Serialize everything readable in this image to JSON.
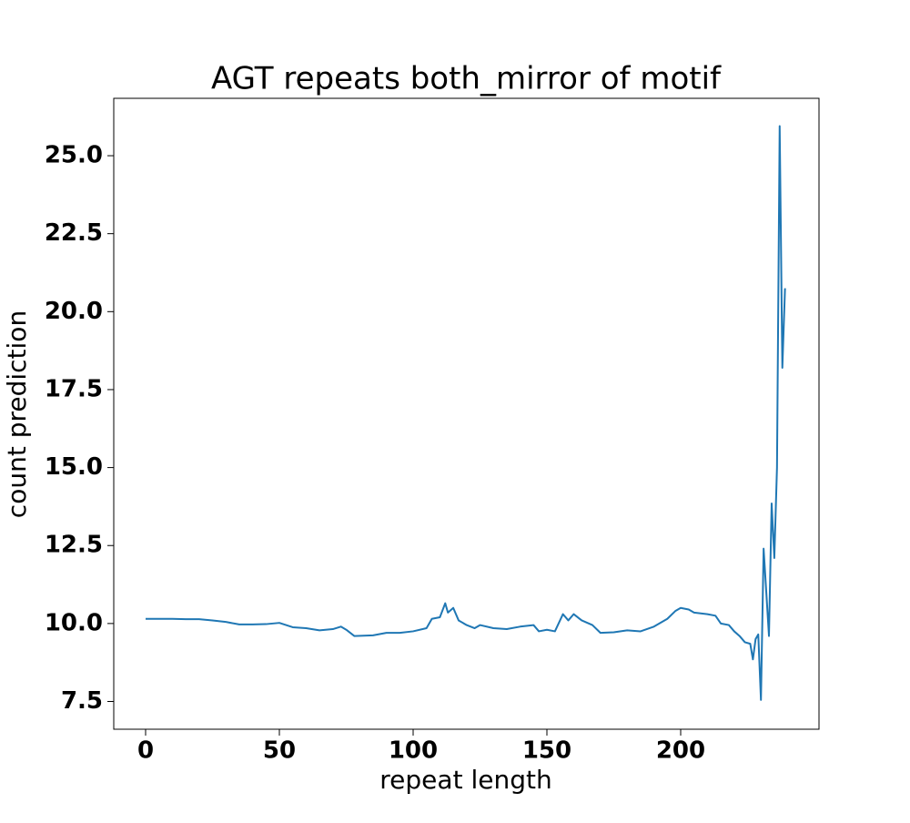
{
  "chart_data": {
    "type": "line",
    "title": "AGT repeats both_mirror of motif",
    "x_label": "repeat length",
    "y_label": "count prediction",
    "xlim": [
      -11.9,
      251.7
    ],
    "ylim": [
      6.61,
      26.84
    ],
    "xticks": [
      0,
      50,
      100,
      150,
      200
    ],
    "yticks": [
      7.5,
      {
        "value": 10,
        "label": "10.0"
      },
      12.5,
      {
        "value": 15,
        "label": "15.0"
      },
      17.5,
      {
        "value": 20,
        "label": "20.0"
      },
      22.5,
      {
        "value": 25,
        "label": "25.0"
      }
    ],
    "x": [
      0,
      5,
      10,
      15,
      20,
      25,
      30,
      35,
      40,
      45,
      50,
      55,
      60,
      65,
      70,
      73,
      75,
      78,
      85,
      90,
      95,
      100,
      105,
      107,
      110,
      112,
      113,
      115,
      117,
      120,
      123,
      125,
      130,
      135,
      140,
      145,
      147,
      150,
      153,
      156,
      158,
      160,
      163,
      167,
      170,
      175,
      180,
      185,
      190,
      195,
      198,
      200,
      203,
      205,
      210,
      213,
      215,
      218,
      220,
      222,
      224,
      226,
      227,
      228,
      229,
      230,
      231,
      233,
      234,
      235,
      236,
      237,
      238,
      239
    ],
    "series": [
      {
        "name": "count prediction",
        "color": "#1f77b4",
        "values": [
          10.15,
          10.15,
          10.15,
          10.14,
          10.14,
          10.1,
          10.05,
          9.97,
          9.97,
          9.98,
          10.02,
          9.88,
          9.85,
          9.78,
          9.82,
          9.9,
          9.8,
          9.6,
          9.62,
          9.7,
          9.7,
          9.75,
          9.85,
          10.15,
          10.2,
          10.65,
          10.35,
          10.5,
          10.1,
          9.95,
          9.85,
          9.95,
          9.85,
          9.82,
          9.9,
          9.95,
          9.75,
          9.8,
          9.75,
          10.3,
          10.1,
          10.3,
          10.1,
          9.95,
          9.7,
          9.72,
          9.78,
          9.75,
          9.9,
          10.15,
          10.4,
          10.5,
          10.45,
          10.35,
          10.3,
          10.25,
          10.0,
          9.95,
          9.75,
          9.6,
          9.4,
          9.35,
          8.85,
          9.5,
          9.65,
          7.55,
          12.4,
          9.6,
          13.85,
          12.1,
          15.0,
          25.95,
          18.2,
          20.75
        ]
      }
    ]
  }
}
